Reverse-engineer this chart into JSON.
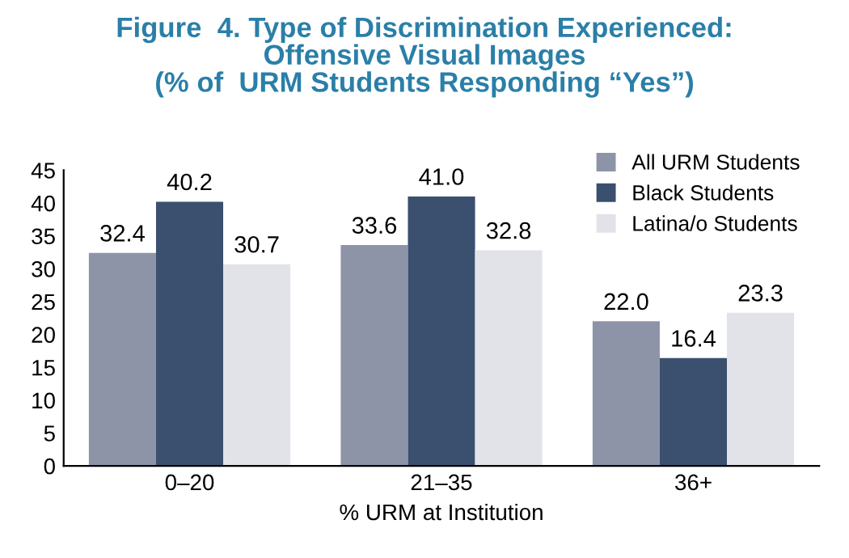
{
  "chart_data": {
    "type": "bar",
    "title": "Figure  4. Type of Discrimination Experienced:\nOffensive Visual Images\n(% of  URM Students Responding “Yes”)",
    "xlabel": "% URM at Institution",
    "categories": [
      "0–20",
      "21–35",
      "36+"
    ],
    "series": [
      {
        "name": "All URM Students",
        "color": "#8d94a8",
        "values": [
          32.4,
          33.6,
          22.0
        ],
        "value_labels": [
          "32.4",
          "33.6",
          "22.0"
        ]
      },
      {
        "name": "Black Students",
        "color": "#3b4f6e",
        "values": [
          40.2,
          41.0,
          16.4
        ],
        "value_labels": [
          "40.2",
          "41.0",
          "16.4"
        ]
      },
      {
        "name": "Latina/o Students",
        "color": "#e2e3e9",
        "values": [
          30.7,
          32.8,
          23.3
        ],
        "value_labels": [
          "30.7",
          "32.8",
          "23.3"
        ]
      }
    ],
    "ylim": [
      0,
      45
    ],
    "yticks": [
      0,
      5,
      10,
      15,
      20,
      25,
      30,
      35,
      40,
      45
    ],
    "grid": false,
    "legend": "top right"
  }
}
